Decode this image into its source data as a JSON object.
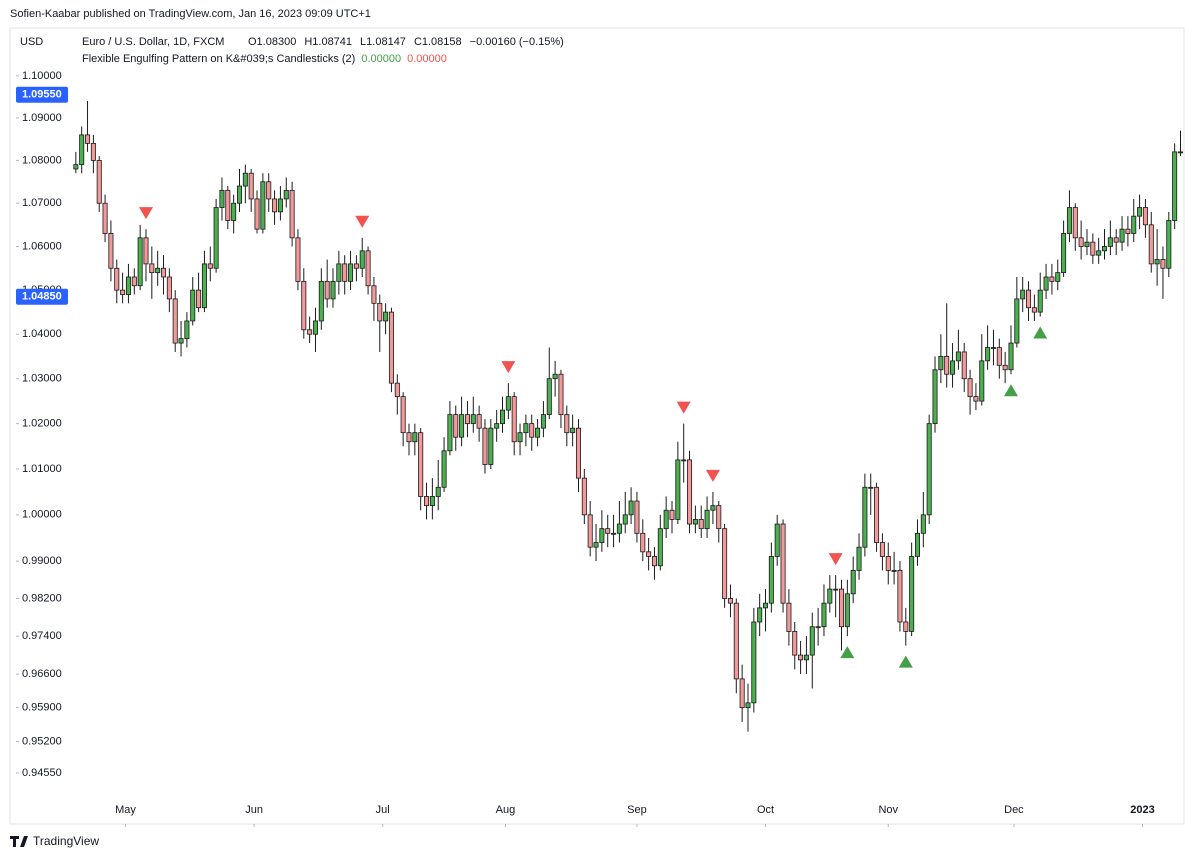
{
  "header": {
    "publisher": "Sofien-Kaabar published on TradingView.com, Jan 16, 2023 09:09 UTC+1",
    "footer": "TradingView"
  },
  "chart_data": {
    "type": "candlestick",
    "currency": "USD",
    "title": "Euro / U.S. Dollar, 1D, FXCM",
    "ohlc_legend": [
      "O1.08300",
      "H1.08741",
      "L1.08147",
      "C1.08158",
      "−0.00160 (−0.15%)"
    ],
    "indicator": {
      "name": "Flexible Engulfing Pattern on K&#039;s Candlesticks (2)",
      "values": [
        {
          "value": 0,
          "label": "0.00000",
          "color": "#43a047"
        },
        {
          "value": 0,
          "label": "0.00000",
          "color": "#f05350"
        }
      ]
    },
    "log": true,
    "grid": false,
    "up_color": "#4caf50",
    "down_color": "#f29a9a",
    "border_color": "#1a1a1a",
    "ylim": [
      0.942,
      1.1115
    ],
    "yticks": [
      {
        "value": 1.1,
        "label": "1.10000"
      },
      {
        "value": 1.09,
        "label": "1.09000"
      },
      {
        "value": 1.08,
        "label": "1.08000"
      },
      {
        "value": 1.07,
        "label": "1.07000"
      },
      {
        "value": 1.06,
        "label": "1.06000"
      },
      {
        "value": 1.05,
        "label": "1.05000"
      },
      {
        "value": 1.04,
        "label": "1.04000"
      },
      {
        "value": 1.03,
        "label": "1.03000"
      },
      {
        "value": 1.02,
        "label": "1.02000"
      },
      {
        "value": 1.01,
        "label": "1.01000"
      },
      {
        "value": 1,
        "label": "1.00000"
      },
      {
        "value": 0.99,
        "label": "0.99000"
      },
      {
        "value": 0.982,
        "label": "0.98200"
      },
      {
        "value": 0.974,
        "label": "0.97400"
      },
      {
        "value": 0.966,
        "label": "0.96600"
      },
      {
        "value": 0.959,
        "label": "0.95900"
      },
      {
        "value": 0.952,
        "label": "0.95200"
      },
      {
        "value": 0.9455,
        "label": "0.94550"
      }
    ],
    "price_labels": [
      {
        "value": 1.0955,
        "label": "1.09550"
      },
      {
        "value": 1.0485,
        "label": "1.04850"
      }
    ],
    "xlim": [
      -1,
      189.6
    ],
    "xticks": [
      {
        "value": 8.5,
        "label": "May"
      },
      {
        "value": 30.5,
        "label": "Jun"
      },
      {
        "value": 52.5,
        "label": "Jul"
      },
      {
        "value": 73.5,
        "label": "Aug"
      },
      {
        "value": 96,
        "label": "Sep"
      },
      {
        "value": 118,
        "label": "Oct"
      },
      {
        "value": 139,
        "label": "Nov"
      },
      {
        "value": 160.5,
        "label": "Dec"
      },
      {
        "value": 182.5,
        "label": "2023"
      }
    ],
    "sell_signals": [
      12,
      49,
      74,
      104,
      109,
      130
    ],
    "buy_signals": [
      132,
      142,
      160,
      165
    ],
    "sell_color": "#f05350",
    "buy_color": "#43a047",
    "candles": [
      [
        1.078,
        1.082,
        1.077,
        1.079
      ],
      [
        1.079,
        1.088,
        1.077,
        1.086
      ],
      [
        1.086,
        1.094,
        1.082,
        1.084
      ],
      [
        1.084,
        1.086,
        1.077,
        1.08
      ],
      [
        1.08,
        1.081,
        1.068,
        1.07
      ],
      [
        1.07,
        1.072,
        1.061,
        1.063
      ],
      [
        1.063,
        1.066,
        1.052,
        1.055
      ],
      [
        1.055,
        1.057,
        1.047,
        1.05
      ],
      [
        1.05,
        1.054,
        1.047,
        1.049
      ],
      [
        1.049,
        1.056,
        1.047,
        1.053
      ],
      [
        1.053,
        1.055,
        1.049,
        1.051
      ],
      [
        1.051,
        1.065,
        1.05,
        1.062
      ],
      [
        1.062,
        1.064,
        1.052,
        1.056
      ],
      [
        1.056,
        1.06,
        1.048,
        1.054
      ],
      [
        1.054,
        1.059,
        1.051,
        1.055
      ],
      [
        1.055,
        1.058,
        1.049,
        1.053
      ],
      [
        1.053,
        1.055,
        1.045,
        1.048
      ],
      [
        1.048,
        1.05,
        1.036,
        1.038
      ],
      [
        1.038,
        1.043,
        1.035,
        1.039
      ],
      [
        1.039,
        1.045,
        1.037,
        1.043
      ],
      [
        1.043,
        1.053,
        1.042,
        1.05
      ],
      [
        1.05,
        1.054,
        1.045,
        1.046
      ],
      [
        1.046,
        1.059,
        1.045,
        1.056
      ],
      [
        1.056,
        1.06,
        1.052,
        1.055
      ],
      [
        1.055,
        1.071,
        1.054,
        1.069
      ],
      [
        1.069,
        1.076,
        1.066,
        1.073
      ],
      [
        1.073,
        1.074,
        1.064,
        1.066
      ],
      [
        1.066,
        1.072,
        1.063,
        1.07
      ],
      [
        1.07,
        1.078,
        1.068,
        1.074
      ],
      [
        1.074,
        1.079,
        1.07,
        1.077
      ],
      [
        1.077,
        1.078,
        1.068,
        1.071
      ],
      [
        1.071,
        1.073,
        1.063,
        1.064
      ],
      [
        1.064,
        1.077,
        1.063,
        1.075
      ],
      [
        1.075,
        1.077,
        1.068,
        1.071
      ],
      [
        1.071,
        1.073,
        1.065,
        1.068
      ],
      [
        1.068,
        1.074,
        1.066,
        1.071
      ],
      [
        1.071,
        1.076,
        1.069,
        1.073
      ],
      [
        1.073,
        1.075,
        1.06,
        1.062
      ],
      [
        1.062,
        1.064,
        1.05,
        1.052
      ],
      [
        1.052,
        1.055,
        1.039,
        1.041
      ],
      [
        1.041,
        1.044,
        1.038,
        1.04
      ],
      [
        1.04,
        1.046,
        1.036,
        1.043
      ],
      [
        1.043,
        1.055,
        1.041,
        1.052
      ],
      [
        1.052,
        1.057,
        1.046,
        1.048
      ],
      [
        1.048,
        1.055,
        1.046,
        1.052
      ],
      [
        1.052,
        1.059,
        1.049,
        1.056
      ],
      [
        1.056,
        1.058,
        1.049,
        1.052
      ],
      [
        1.052,
        1.059,
        1.05,
        1.056
      ],
      [
        1.056,
        1.058,
        1.052,
        1.055
      ],
      [
        1.055,
        1.062,
        1.053,
        1.059
      ],
      [
        1.059,
        1.06,
        1.049,
        1.051
      ],
      [
        1.051,
        1.053,
        1.043,
        1.047
      ],
      [
        1.047,
        1.049,
        1.036,
        1.043
      ],
      [
        1.043,
        1.047,
        1.04,
        1.045
      ],
      [
        1.045,
        1.046,
        1.027,
        1.029
      ],
      [
        1.029,
        1.031,
        1.022,
        1.026
      ],
      [
        1.026,
        1.027,
        1.015,
        1.018
      ],
      [
        1.018,
        1.02,
        1.013,
        1.016
      ],
      [
        1.016,
        1.02,
        1.013,
        1.018
      ],
      [
        1.018,
        1.019,
        1.001,
        1.004
      ],
      [
        1.004,
        1.007,
        0.999,
        1.002
      ],
      [
        1.002,
        1.008,
        0.999,
        1.004
      ],
      [
        1.004,
        1.012,
        1.001,
        1.006
      ],
      [
        1.006,
        1.017,
        1.005,
        1.014
      ],
      [
        1.014,
        1.025,
        1.013,
        1.022
      ],
      [
        1.022,
        1.024,
        1.014,
        1.017
      ],
      [
        1.017,
        1.026,
        1.015,
        1.022
      ],
      [
        1.022,
        1.025,
        1.017,
        1.02
      ],
      [
        1.02,
        1.026,
        1.018,
        1.022
      ],
      [
        1.022,
        1.024,
        1.016,
        1.019
      ],
      [
        1.019,
        1.021,
        1.009,
        1.011
      ],
      [
        1.011,
        1.021,
        1.01,
        1.019
      ],
      [
        1.019,
        1.023,
        1.016,
        1.02
      ],
      [
        1.02,
        1.026,
        1.018,
        1.023
      ],
      [
        1.023,
        1.029,
        1.021,
        1.026
      ],
      [
        1.026,
        1.027,
        1.013,
        1.016
      ],
      [
        1.016,
        1.02,
        1.013,
        1.018
      ],
      [
        1.018,
        1.022,
        1.015,
        1.02
      ],
      [
        1.02,
        1.022,
        1.014,
        1.017
      ],
      [
        1.017,
        1.021,
        1.015,
        1.019
      ],
      [
        1.019,
        1.025,
        1.017,
        1.022
      ],
      [
        1.022,
        1.037,
        1.021,
        1.03
      ],
      [
        1.03,
        1.034,
        1.026,
        1.031
      ],
      [
        1.031,
        1.032,
        1.019,
        1.022
      ],
      [
        1.022,
        1.024,
        1.015,
        1.018
      ],
      [
        1.018,
        1.022,
        1.015,
        1.019
      ],
      [
        1.019,
        1.021,
        1.005,
        1.008
      ],
      [
        1.008,
        1.01,
        0.998,
        1.0
      ],
      [
        1.0,
        1.003,
        0.991,
        0.993
      ],
      [
        0.993,
        0.998,
        0.99,
        0.994
      ],
      [
        0.994,
        1.001,
        0.992,
        0.997
      ],
      [
        0.997,
        1.0,
        0.993,
        0.996
      ],
      [
        0.996,
        1.0,
        0.993,
        0.996
      ],
      [
        0.996,
        1.003,
        0.994,
        0.998
      ],
      [
        0.998,
        1.005,
        0.996,
        1.0
      ],
      [
        1.0,
        1.006,
        0.998,
        1.003
      ],
      [
        1.003,
        1.005,
        0.994,
        0.996
      ],
      [
        0.996,
        0.999,
        0.99,
        0.992
      ],
      [
        0.992,
        0.995,
        0.988,
        0.991
      ],
      [
        0.991,
        0.993,
        0.986,
        0.989
      ],
      [
        0.989,
        1.0,
        0.988,
        0.997
      ],
      [
        0.997,
        1.004,
        0.995,
        1.001
      ],
      [
        1.001,
        1.003,
        0.996,
        0.999
      ],
      [
        0.999,
        1.016,
        0.998,
        1.012
      ],
      [
        1.012,
        1.02,
        1.007,
        1.012
      ],
      [
        1.012,
        1.014,
        0.996,
        0.998
      ],
      [
        0.998,
        1.002,
        0.996,
        0.999
      ],
      [
        0.999,
        1.002,
        0.995,
        0.997
      ],
      [
        0.997,
        1.004,
        0.995,
        1.001
      ],
      [
        1.001,
        1.005,
        0.998,
        1.002
      ],
      [
        1.002,
        1.003,
        0.994,
        0.997
      ],
      [
        0.997,
        0.998,
        0.98,
        0.982
      ],
      [
        0.982,
        0.985,
        0.978,
        0.981
      ],
      [
        0.981,
        0.982,
        0.962,
        0.965
      ],
      [
        0.965,
        0.968,
        0.956,
        0.959
      ],
      [
        0.959,
        0.964,
        0.954,
        0.96
      ],
      [
        0.96,
        0.98,
        0.958,
        0.977
      ],
      [
        0.977,
        0.983,
        0.974,
        0.98
      ],
      [
        0.98,
        0.984,
        0.975,
        0.981
      ],
      [
        0.981,
        0.994,
        0.979,
        0.991
      ],
      [
        0.991,
        1.0,
        0.989,
        0.998
      ],
      [
        0.998,
        0.999,
        0.979,
        0.981
      ],
      [
        0.981,
        0.984,
        0.972,
        0.975
      ],
      [
        0.975,
        0.977,
        0.967,
        0.97
      ],
      [
        0.97,
        0.973,
        0.966,
        0.969
      ],
      [
        0.969,
        0.974,
        0.966,
        0.97
      ],
      [
        0.97,
        0.979,
        0.963,
        0.976
      ],
      [
        0.976,
        0.98,
        0.972,
        0.976
      ],
      [
        0.976,
        0.985,
        0.974,
        0.981
      ],
      [
        0.981,
        0.987,
        0.979,
        0.984
      ],
      [
        0.984,
        0.987,
        0.978,
        0.984
      ],
      [
        0.984,
        0.986,
        0.971,
        0.976
      ],
      [
        0.976,
        0.986,
        0.974,
        0.983
      ],
      [
        0.983,
        0.991,
        0.981,
        0.988
      ],
      [
        0.988,
        0.996,
        0.986,
        0.993
      ],
      [
        0.993,
        1.009,
        0.991,
        1.006
      ],
      [
        1.006,
        1.009,
        1.0,
        1.006
      ],
      [
        1.006,
        1.007,
        0.992,
        0.994
      ],
      [
        0.994,
        0.996,
        0.988,
        0.991
      ],
      [
        0.991,
        0.994,
        0.985,
        0.988
      ],
      [
        0.988,
        0.992,
        0.985,
        0.988
      ],
      [
        0.988,
        0.99,
        0.975,
        0.977
      ],
      [
        0.977,
        0.98,
        0.972,
        0.975
      ],
      [
        0.975,
        0.994,
        0.974,
        0.991
      ],
      [
        0.991,
        0.999,
        0.989,
        0.996
      ],
      [
        0.996,
        1.005,
        0.993,
        1.0
      ],
      [
        1.0,
        1.022,
        0.998,
        1.02
      ],
      [
        1.02,
        1.035,
        1.018,
        1.032
      ],
      [
        1.032,
        1.04,
        1.029,
        1.035
      ],
      [
        1.035,
        1.047,
        1.028,
        1.031
      ],
      [
        1.031,
        1.038,
        1.028,
        1.034
      ],
      [
        1.034,
        1.041,
        1.032,
        1.036
      ],
      [
        1.036,
        1.038,
        1.027,
        1.03
      ],
      [
        1.03,
        1.032,
        1.022,
        1.026
      ],
      [
        1.026,
        1.029,
        1.023,
        1.025
      ],
      [
        1.025,
        1.04,
        1.024,
        1.034
      ],
      [
        1.034,
        1.042,
        1.032,
        1.037
      ],
      [
        1.037,
        1.041,
        1.033,
        1.037
      ],
      [
        1.037,
        1.039,
        1.03,
        1.033
      ],
      [
        1.033,
        1.036,
        1.029,
        1.032
      ],
      [
        1.032,
        1.042,
        1.031,
        1.038
      ],
      [
        1.038,
        1.053,
        1.037,
        1.048
      ],
      [
        1.048,
        1.053,
        1.045,
        1.05
      ],
      [
        1.05,
        1.052,
        1.043,
        1.046
      ],
      [
        1.046,
        1.049,
        1.043,
        1.045
      ],
      [
        1.045,
        1.054,
        1.044,
        1.05
      ],
      [
        1.05,
        1.056,
        1.048,
        1.053
      ],
      [
        1.053,
        1.056,
        1.049,
        1.052
      ],
      [
        1.052,
        1.057,
        1.05,
        1.054
      ],
      [
        1.054,
        1.066,
        1.053,
        1.063
      ],
      [
        1.063,
        1.073,
        1.061,
        1.069
      ],
      [
        1.069,
        1.07,
        1.059,
        1.062
      ],
      [
        1.062,
        1.066,
        1.057,
        1.06
      ],
      [
        1.06,
        1.064,
        1.058,
        1.061
      ],
      [
        1.061,
        1.063,
        1.056,
        1.058
      ],
      [
        1.058,
        1.062,
        1.056,
        1.059
      ],
      [
        1.059,
        1.064,
        1.057,
        1.06
      ],
      [
        1.06,
        1.066,
        1.058,
        1.062
      ],
      [
        1.062,
        1.064,
        1.058,
        1.061
      ],
      [
        1.061,
        1.067,
        1.059,
        1.064
      ],
      [
        1.064,
        1.067,
        1.06,
        1.063
      ],
      [
        1.063,
        1.071,
        1.061,
        1.067
      ],
      [
        1.067,
        1.072,
        1.064,
        1.069
      ],
      [
        1.069,
        1.071,
        1.062,
        1.065
      ],
      [
        1.065,
        1.068,
        1.054,
        1.056
      ],
      [
        1.056,
        1.064,
        1.051,
        1.057
      ],
      [
        1.057,
        1.06,
        1.048,
        1.055
      ],
      [
        1.055,
        1.068,
        1.053,
        1.066
      ],
      [
        1.066,
        1.084,
        1.064,
        1.082
      ],
      [
        1.082,
        1.087,
        1.081,
        1.082
      ]
    ]
  }
}
